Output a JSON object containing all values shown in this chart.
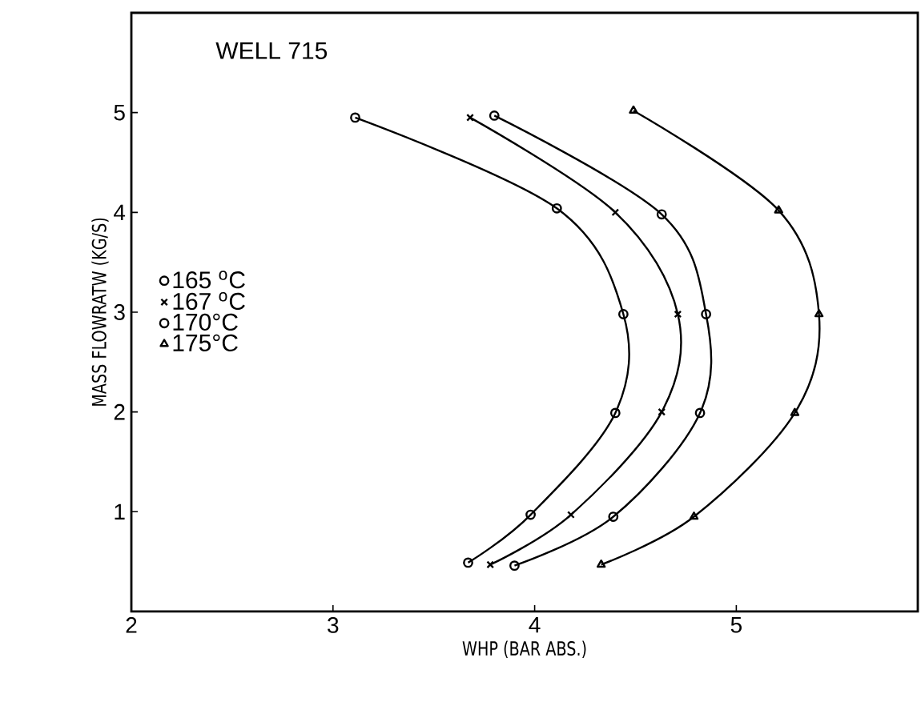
{
  "chart_data": {
    "type": "line",
    "title": "WELL 715",
    "xlabel": "WHP (BAR ABS.)",
    "ylabel": "MASS FLOWRATW (KG/S)",
    "xlim": [
      2,
      5.9
    ],
    "ylim": [
      0,
      6
    ],
    "xticks": [
      2,
      3,
      4,
      5
    ],
    "yticks": [
      1,
      2,
      3,
      4,
      5
    ],
    "grid": false,
    "legend": "left",
    "series": [
      {
        "name": "165 $^{o}$C",
        "color": "#000000",
        "marker": "circle",
        "x": [
          3.11,
          4.11,
          4.44,
          4.4,
          3.98,
          3.67
        ],
        "values": [
          4.95,
          4.04,
          2.98,
          1.99,
          0.97,
          0.49
        ]
      },
      {
        "name": "167 $^{o}$C",
        "color": "#000000",
        "marker": "cross",
        "x": [
          3.68,
          4.4,
          4.71,
          4.63,
          4.18,
          3.78
        ],
        "values": [
          4.95,
          4.0,
          2.98,
          2.0,
          0.97,
          0.47
        ]
      },
      {
        "name": "170°C",
        "color": "#000000",
        "marker": "circle",
        "x": [
          3.8,
          4.63,
          4.85,
          4.82,
          4.39,
          3.9
        ],
        "values": [
          4.97,
          3.98,
          2.98,
          1.99,
          0.95,
          0.46
        ]
      },
      {
        "name": "175°C",
        "color": "#000000",
        "marker": "triangle",
        "x": [
          4.49,
          5.21,
          5.41,
          5.29,
          4.79,
          4.33
        ],
        "values": [
          5.02,
          4.02,
          2.98,
          1.99,
          0.95,
          0.47
        ]
      }
    ]
  }
}
